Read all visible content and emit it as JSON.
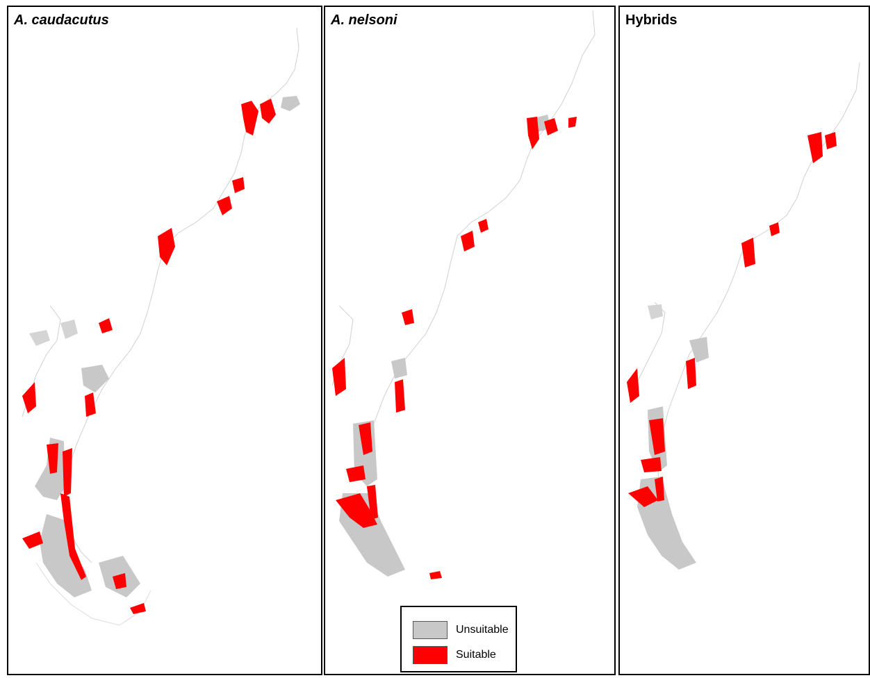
{
  "panels": [
    {
      "id": "caudacutus",
      "title": "A. caudacutus",
      "italic": true
    },
    {
      "id": "nelsoni",
      "title": "A. nelsoni",
      "italic": true
    },
    {
      "id": "hybrids",
      "title": "Hybrids",
      "italic": false
    }
  ],
  "legend": {
    "items": [
      {
        "label": "Unsuitable",
        "color": "#c8c8c8"
      },
      {
        "label": "Suitable",
        "color": "#ff0000"
      }
    ]
  },
  "colors": {
    "unsuitable": "#c8c8c8",
    "suitable": "#ff0000",
    "border": "#000000"
  }
}
